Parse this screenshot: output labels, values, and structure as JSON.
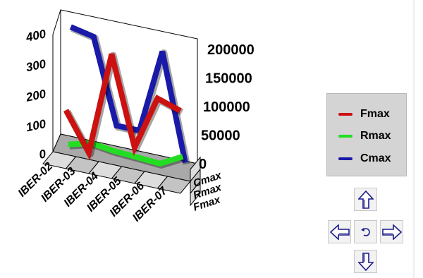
{
  "chart_data": {
    "type": "line",
    "style": "3d",
    "categories": [
      "IBER-02",
      "IBER-03",
      "IBER-04",
      "IBER-05",
      "IBER-06",
      "IBER-07"
    ],
    "depth_axis_labels": [
      "Cmax",
      "Rmax",
      "Fmax"
    ],
    "left_axis": {
      "ticks": [
        "0",
        "100",
        "200",
        "300",
        "400"
      ],
      "range": [
        0,
        400
      ]
    },
    "right_axis": {
      "ticks": [
        "0",
        "50000",
        "100000",
        "150000",
        "200000"
      ],
      "range": [
        0,
        200000
      ]
    },
    "series": [
      {
        "name": "Fmax",
        "color": "#cc1111",
        "axis": "left",
        "values": [
          135,
          10,
          355,
          60,
          240,
          215
        ]
      },
      {
        "name": "Rmax",
        "color": "#22dd22",
        "axis": "left",
        "values": [
          3,
          24,
          14,
          10,
          5,
          45
        ]
      },
      {
        "name": "Cmax",
        "color": "#1a1aa8",
        "axis": "right",
        "values": [
          188000,
          180000,
          40000,
          40000,
          180000,
          3000
        ]
      }
    ],
    "grid": false,
    "legend_position": "right"
  },
  "nav": {
    "up": "up-arrow",
    "left": "left-arrow",
    "reset": "undo-rotate",
    "right": "right-arrow",
    "down": "down-arrow"
  }
}
